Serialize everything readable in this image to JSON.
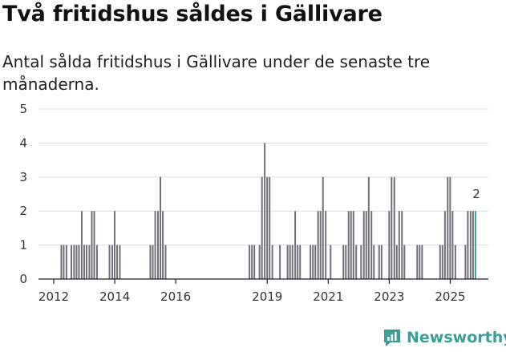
{
  "title": "Två fritidshus såldes i Gällivare",
  "subtitle": "Antal sålda fritidshus i Gällivare under de senaste tre månaderna.",
  "brand": {
    "name": "Newsworthy",
    "icon": "newsworthy-logo-icon"
  },
  "colors": {
    "bar": "#6f6f75",
    "highlight": "#2aa39a",
    "grid": "#dddddd",
    "brand": "#3a9f96"
  },
  "chart_data": {
    "type": "bar",
    "title": "Två fritidshus såldes i Gällivare",
    "xlabel": "",
    "ylabel": "",
    "ylim": [
      0,
      5
    ],
    "yticks": [
      "0",
      "1",
      "2",
      "3",
      "4",
      "5"
    ],
    "xticks": [
      {
        "label": "2012",
        "value": 2012.0
      },
      {
        "label": "2014",
        "value": 2014.0
      },
      {
        "label": "2016",
        "value": 2016.0
      },
      {
        "label": "2019",
        "value": 2019.0
      },
      {
        "label": "2021",
        "value": 2021.0
      },
      {
        "label": "2023",
        "value": 2023.0
      },
      {
        "label": "2025",
        "value": 2025.0
      }
    ],
    "x_range": [
      2011.5,
      2026.25
    ],
    "bar_width_years": 0.0833,
    "series": [
      {
        "name": "Antal sålda fritidshus",
        "points": [
          {
            "t": 2012.25,
            "v": 1
          },
          {
            "t": 2012.33,
            "v": 1
          },
          {
            "t": 2012.42,
            "v": 1
          },
          {
            "t": 2012.58,
            "v": 1
          },
          {
            "t": 2012.67,
            "v": 1
          },
          {
            "t": 2012.75,
            "v": 1
          },
          {
            "t": 2012.83,
            "v": 1
          },
          {
            "t": 2012.92,
            "v": 2
          },
          {
            "t": 2013.0,
            "v": 1
          },
          {
            "t": 2013.08,
            "v": 1
          },
          {
            "t": 2013.17,
            "v": 1
          },
          {
            "t": 2013.25,
            "v": 2
          },
          {
            "t": 2013.33,
            "v": 2
          },
          {
            "t": 2013.42,
            "v": 1
          },
          {
            "t": 2013.83,
            "v": 1
          },
          {
            "t": 2013.92,
            "v": 1
          },
          {
            "t": 2014.0,
            "v": 2
          },
          {
            "t": 2014.08,
            "v": 1
          },
          {
            "t": 2014.17,
            "v": 1
          },
          {
            "t": 2015.17,
            "v": 1
          },
          {
            "t": 2015.25,
            "v": 1
          },
          {
            "t": 2015.33,
            "v": 2
          },
          {
            "t": 2015.42,
            "v": 2
          },
          {
            "t": 2015.5,
            "v": 3
          },
          {
            "t": 2015.58,
            "v": 2
          },
          {
            "t": 2015.67,
            "v": 1
          },
          {
            "t": 2018.42,
            "v": 1
          },
          {
            "t": 2018.5,
            "v": 1
          },
          {
            "t": 2018.58,
            "v": 1
          },
          {
            "t": 2018.75,
            "v": 1
          },
          {
            "t": 2018.83,
            "v": 3
          },
          {
            "t": 2018.92,
            "v": 4
          },
          {
            "t": 2019.0,
            "v": 3
          },
          {
            "t": 2019.08,
            "v": 3
          },
          {
            "t": 2019.17,
            "v": 1
          },
          {
            "t": 2019.42,
            "v": 1
          },
          {
            "t": 2019.67,
            "v": 1
          },
          {
            "t": 2019.75,
            "v": 1
          },
          {
            "t": 2019.83,
            "v": 1
          },
          {
            "t": 2019.92,
            "v": 2
          },
          {
            "t": 2020.0,
            "v": 1
          },
          {
            "t": 2020.08,
            "v": 1
          },
          {
            "t": 2020.42,
            "v": 1
          },
          {
            "t": 2020.5,
            "v": 1
          },
          {
            "t": 2020.58,
            "v": 1
          },
          {
            "t": 2020.67,
            "v": 2
          },
          {
            "t": 2020.75,
            "v": 2
          },
          {
            "t": 2020.83,
            "v": 3
          },
          {
            "t": 2020.92,
            "v": 2
          },
          {
            "t": 2021.08,
            "v": 1
          },
          {
            "t": 2021.5,
            "v": 1
          },
          {
            "t": 2021.58,
            "v": 1
          },
          {
            "t": 2021.67,
            "v": 2
          },
          {
            "t": 2021.75,
            "v": 2
          },
          {
            "t": 2021.83,
            "v": 2
          },
          {
            "t": 2021.92,
            "v": 1
          },
          {
            "t": 2022.08,
            "v": 1
          },
          {
            "t": 2022.17,
            "v": 2
          },
          {
            "t": 2022.25,
            "v": 2
          },
          {
            "t": 2022.33,
            "v": 3
          },
          {
            "t": 2022.42,
            "v": 2
          },
          {
            "t": 2022.5,
            "v": 1
          },
          {
            "t": 2022.67,
            "v": 1
          },
          {
            "t": 2022.75,
            "v": 1
          },
          {
            "t": 2023.0,
            "v": 2
          },
          {
            "t": 2023.08,
            "v": 3
          },
          {
            "t": 2023.17,
            "v": 3
          },
          {
            "t": 2023.25,
            "v": 1
          },
          {
            "t": 2023.33,
            "v": 2
          },
          {
            "t": 2023.42,
            "v": 2
          },
          {
            "t": 2023.5,
            "v": 1
          },
          {
            "t": 2023.92,
            "v": 1
          },
          {
            "t": 2024.0,
            "v": 1
          },
          {
            "t": 2024.08,
            "v": 1
          },
          {
            "t": 2024.67,
            "v": 1
          },
          {
            "t": 2024.75,
            "v": 1
          },
          {
            "t": 2024.83,
            "v": 2
          },
          {
            "t": 2024.92,
            "v": 3
          },
          {
            "t": 2025.0,
            "v": 3
          },
          {
            "t": 2025.08,
            "v": 2
          },
          {
            "t": 2025.17,
            "v": 1
          },
          {
            "t": 2025.5,
            "v": 1
          },
          {
            "t": 2025.58,
            "v": 2
          },
          {
            "t": 2025.67,
            "v": 2
          },
          {
            "t": 2025.75,
            "v": 2
          },
          {
            "t": 2025.83,
            "v": 2
          }
        ]
      }
    ],
    "highlight": {
      "t": 2025.83,
      "v": 2,
      "label": "2"
    }
  }
}
